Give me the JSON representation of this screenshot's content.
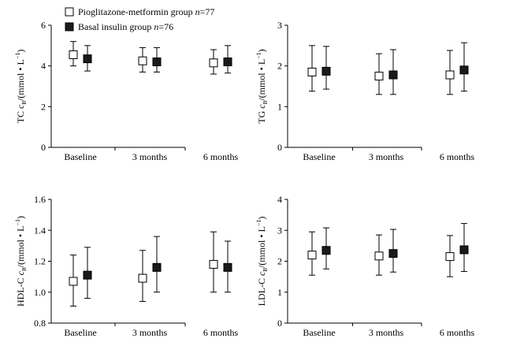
{
  "legend": {
    "series": [
      {
        "name": "Pioglitazone-metformin group",
        "n_label": "n",
        "n_value": "=77",
        "marker": "open-square"
      },
      {
        "name": "Basal insulin group",
        "n_label": "n",
        "n_value": "=76",
        "marker": "filled-square"
      }
    ]
  },
  "chart_data": [
    {
      "type": "scatter-errorbar",
      "panel": "TC",
      "ylabel": {
        "prefix": "TC ",
        "symbol": "c",
        "subscript": "B",
        "unit": "/(mmol • L",
        "sup": "−1",
        "close": ")"
      },
      "categories": [
        "Baseline",
        "3 months",
        "6 months"
      ],
      "ylim": [
        0,
        6
      ],
      "yticks": [
        0,
        2,
        4,
        6
      ],
      "ytick_labels": [
        "0",
        "2",
        "4",
        "6"
      ],
      "series": [
        {
          "name": "Pioglitazone-metformin group",
          "marker": "open",
          "values": [
            4.55,
            4.25,
            4.15
          ],
          "err_low": [
            4.0,
            3.7,
            3.6
          ],
          "err_high": [
            5.2,
            4.9,
            4.8
          ]
        },
        {
          "name": "Basal insulin group",
          "marker": "filled",
          "values": [
            4.35,
            4.2,
            4.2
          ],
          "err_low": [
            3.75,
            3.7,
            3.65
          ],
          "err_high": [
            5.0,
            4.9,
            5.0
          ]
        }
      ]
    },
    {
      "type": "scatter-errorbar",
      "panel": "TG",
      "ylabel": {
        "prefix": "TG ",
        "symbol": "c",
        "subscript": "B",
        "unit": "/(mmol • L",
        "sup": "−1",
        "close": ")"
      },
      "categories": [
        "Baseline",
        "3 months",
        "6 months"
      ],
      "ylim": [
        0,
        3
      ],
      "yticks": [
        0,
        1,
        2,
        3
      ],
      "ytick_labels": [
        "0",
        "1",
        "2",
        "3"
      ],
      "series": [
        {
          "name": "Pioglitazone-metformin group",
          "marker": "open",
          "values": [
            1.85,
            1.75,
            1.78
          ],
          "err_low": [
            1.38,
            1.3,
            1.3
          ],
          "err_high": [
            2.5,
            2.3,
            2.38
          ]
        },
        {
          "name": "Basal insulin group",
          "marker": "filled",
          "values": [
            1.87,
            1.78,
            1.9
          ],
          "err_low": [
            1.43,
            1.3,
            1.38
          ],
          "err_high": [
            2.48,
            2.4,
            2.57
          ]
        }
      ]
    },
    {
      "type": "scatter-errorbar",
      "panel": "HDL-C",
      "ylabel": {
        "prefix": "HDL-C ",
        "symbol": "c",
        "subscript": "B",
        "unit": "/(mmol • L",
        "sup": "−1",
        "close": ")"
      },
      "categories": [
        "Baseline",
        "3 months",
        "6 months"
      ],
      "ylim": [
        0.8,
        1.6
      ],
      "yticks": [
        0.8,
        1.0,
        1.2,
        1.4,
        1.6
      ],
      "ytick_labels": [
        "0.8",
        "1.0",
        "1.2",
        "1.4",
        "1.6"
      ],
      "series": [
        {
          "name": "Pioglitazone-metformin group",
          "marker": "open",
          "values": [
            1.07,
            1.09,
            1.18
          ],
          "err_low": [
            0.91,
            0.94,
            1.0
          ],
          "err_high": [
            1.24,
            1.27,
            1.39
          ]
        },
        {
          "name": "Basal insulin group",
          "marker": "filled",
          "values": [
            1.11,
            1.16,
            1.16
          ],
          "err_low": [
            0.96,
            1.0,
            1.0
          ],
          "err_high": [
            1.29,
            1.36,
            1.33
          ]
        }
      ]
    },
    {
      "type": "scatter-errorbar",
      "panel": "LDL-C",
      "ylabel": {
        "prefix": "LDL-C ",
        "symbol": "c",
        "subscript": "B",
        "unit": "/(mmol • L",
        "sup": "−1",
        "close": ")"
      },
      "categories": [
        "Baseline",
        "3 months",
        "6 months"
      ],
      "ylim": [
        0,
        4
      ],
      "yticks": [
        0,
        1,
        2,
        3,
        4
      ],
      "ytick_labels": [
        "0",
        "1",
        "2",
        "3",
        "4"
      ],
      "series": [
        {
          "name": "Pioglitazone-metformin group",
          "marker": "open",
          "values": [
            2.2,
            2.17,
            2.15
          ],
          "err_low": [
            1.55,
            1.55,
            1.5
          ],
          "err_high": [
            2.95,
            2.85,
            2.83
          ]
        },
        {
          "name": "Basal insulin group",
          "marker": "filled",
          "values": [
            2.35,
            2.25,
            2.37
          ],
          "err_low": [
            1.75,
            1.65,
            1.67
          ],
          "err_high": [
            3.08,
            3.03,
            3.22
          ]
        }
      ]
    }
  ]
}
